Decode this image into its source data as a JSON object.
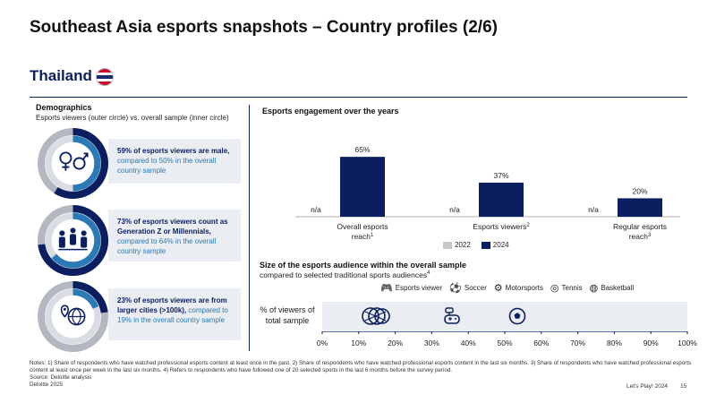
{
  "title": "Southeast Asia esports snapshots – Country profiles (2/6)",
  "country": "Thailand",
  "demographics": {
    "title": "Demographics",
    "subtitle": "Esports viewers (outer circle) vs. overall sample (inner circle)",
    "stats": [
      {
        "bold": "59% of esports viewers are male,",
        "rest": " compared to 50% in the overall country sample",
        "icon": "gender-icon",
        "outer": 59,
        "inner": 50
      },
      {
        "bold": "73% of esports viewers count as Generation Z or Millennials,",
        "rest": " compared to 64% in the overall country sample",
        "icon": "family-icon",
        "outer": 73,
        "inner": 64
      },
      {
        "bold": "23% of esports viewers are from larger cities (>100k),",
        "rest": " compared to 19% in the overall country sample",
        "icon": "city-globe-icon",
        "outer": 23,
        "inner": 19
      }
    ]
  },
  "engagement": {
    "title": "Esports engagement over the years",
    "legend": [
      "2022",
      "2024"
    ],
    "colors": {
      "2022": "#c8c8c8",
      "2024": "#0b1e60"
    }
  },
  "audience": {
    "title": "Size of the esports audience within the overall sample",
    "subtitle": "compared to selected traditional sports audiences",
    "subtitle_sup": "4",
    "row_label_1": "% of viewers of",
    "row_label_2": "total sample",
    "legend": [
      "Esports viewer",
      "Soccer",
      "Motorsports",
      "Tennis",
      "Basketball"
    ],
    "ticks": [
      "0%",
      "10%",
      "20%",
      "30%",
      "40%",
      "50%",
      "60%",
      "70%",
      "80%",
      "90%",
      "100%"
    ]
  },
  "chart_data": {
    "type": "bar",
    "title": "Esports engagement over the years",
    "categories": [
      "Overall esports reach",
      "Esports viewers",
      "Regular esports reach"
    ],
    "category_sups": [
      "1",
      "2",
      "3"
    ],
    "series": [
      {
        "name": "2022",
        "values": [
          null,
          null,
          null
        ],
        "labels": [
          "n/a",
          "n/a",
          "n/a"
        ]
      },
      {
        "name": "2024",
        "values": [
          65,
          37,
          20
        ],
        "labels": [
          "65%",
          "37%",
          "20%"
        ]
      }
    ],
    "ylim": [
      0,
      70
    ]
  },
  "notes": "Notes: 1) Share of respondents who have watched professional esports content at least once in the past. 2) Share of respondents who have watched professional esports content in the last six months. 3) Share of respondents who have watched professional esports content at least once per week in the last six months. 4) Refers to respondents who have followed one of 20 selected sports in the last 6 months before the survey period.",
  "source": "Source: Deloitte analysis",
  "copyright": "Deloitte 2025",
  "footer_right": "Let's Play! 2024",
  "page_number": "15"
}
